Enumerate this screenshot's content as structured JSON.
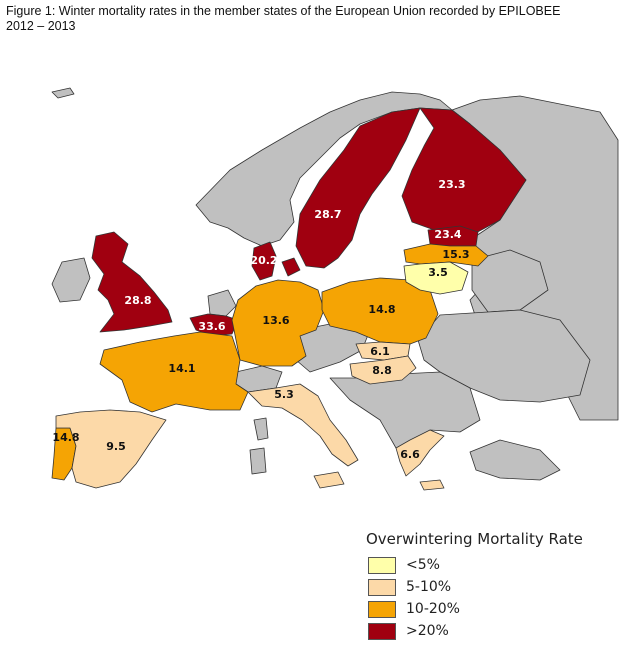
{
  "caption": {
    "line1": "Figure 1: Winter mortality rates in the member states of the European Union recorded by EPILOBEE",
    "line2": "2012 – 2013"
  },
  "colors": {
    "background": "#ffffff",
    "no_data": "#c0c0c0",
    "lt5": "#ffffaa",
    "c5_10": "#fcd9a8",
    "c10_20": "#f5a404",
    "gt20": "#a00010",
    "border": "#333333"
  },
  "countries": {
    "sweden": "28.7",
    "finland": "23.3",
    "estonia": "23.4",
    "latvia": "15.3",
    "lithuania": "3.5",
    "denmark": "20.2",
    "uk": "28.8",
    "belgium": "33.6",
    "germany": "13.6",
    "poland": "14.8",
    "france": "14.1",
    "slovakia": "6.1",
    "hungary": "8.8",
    "italy": "5.3",
    "spain": "9.5",
    "portugal": "14.8",
    "greece": "6.6"
  },
  "legend": {
    "title": "Overwintering Mortality Rate",
    "items": [
      {
        "label": "<5%",
        "color": "#ffffaa"
      },
      {
        "label": "5-10%",
        "color": "#fcd9a8"
      },
      {
        "label": "10-20%",
        "color": "#f5a404"
      },
      {
        "label": ">20%",
        "color": "#a00010"
      }
    ]
  }
}
